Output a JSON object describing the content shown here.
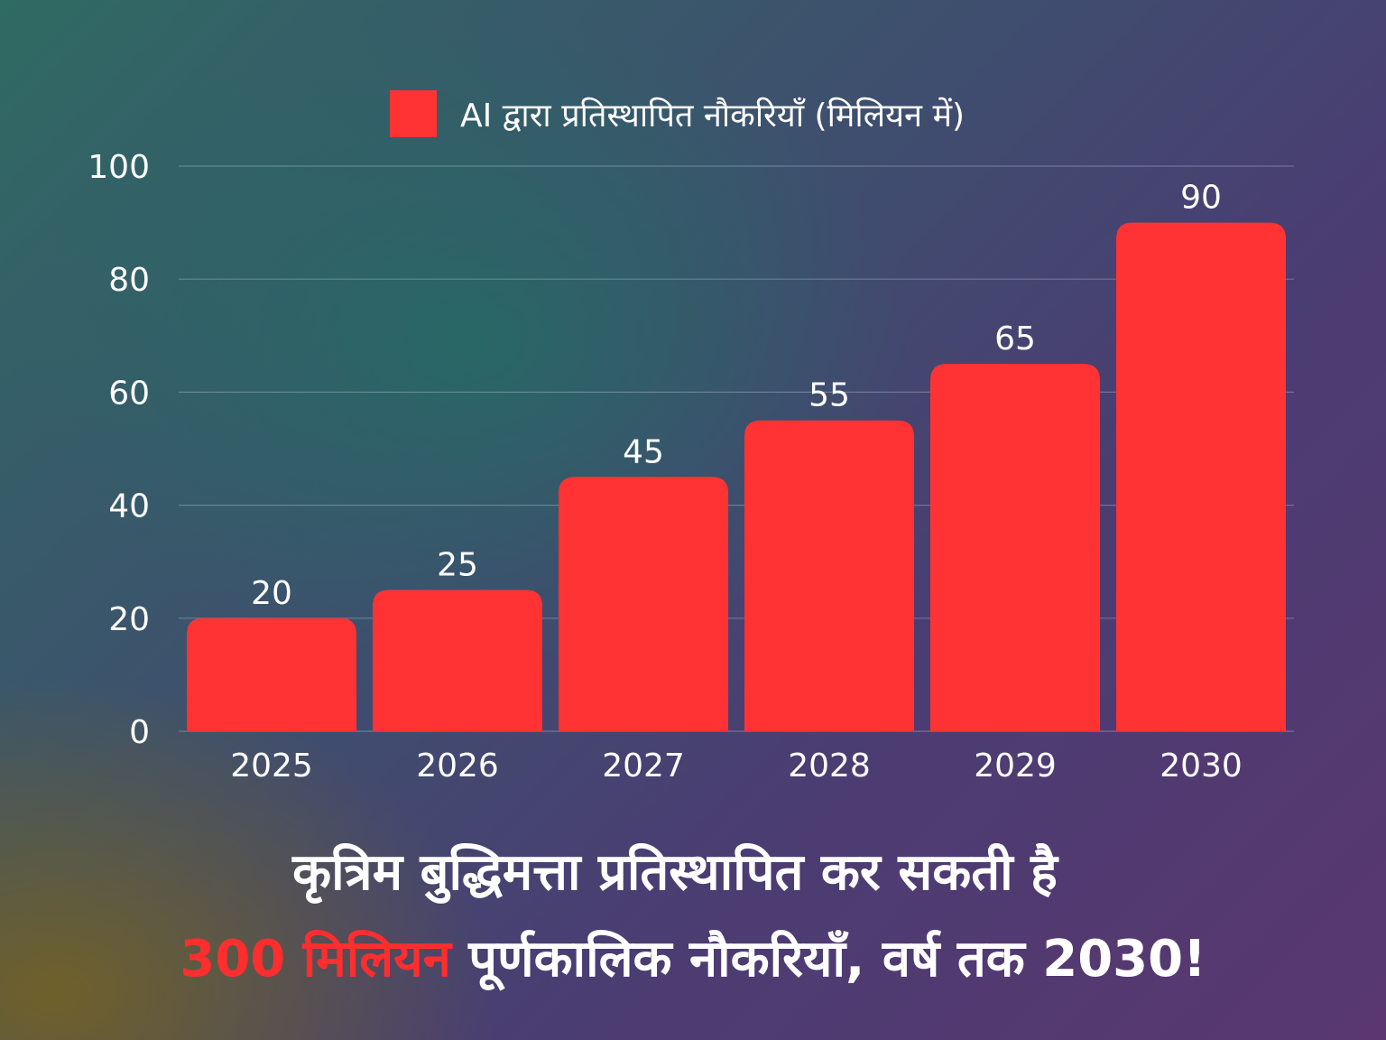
{
  "chart_data": {
    "type": "bar",
    "categories": [
      "2025",
      "2026",
      "2027",
      "2028",
      "2029",
      "2030"
    ],
    "series": [
      {
        "name": "AI द्वारा प्रतिस्थापित नौकरियाँ (मिलियन में)",
        "values": [
          20,
          25,
          45,
          55,
          65,
          90
        ]
      }
    ],
    "data_labels": [
      "20",
      "25",
      "45",
      "55",
      "65",
      "90"
    ],
    "y_ticks": [
      "0",
      "20",
      "40",
      "60",
      "80",
      "100"
    ],
    "ylim": [
      0,
      100
    ],
    "grid": true,
    "legend_position": "top",
    "bar_color": "#ff3333"
  },
  "headline": {
    "line1": "कृत्रिम बुद्धिमत्ता प्रतिस्थापित कर सकती है",
    "line2_accent": "300 मिलियन",
    "line2_rest": " पूर्णकालिक नौकरियाँ, वर्ष तक 2030!"
  },
  "colors": {
    "accent": "#ff2e2e",
    "text": "#ffffff",
    "grid": "rgba(255,255,255,0.25)"
  }
}
